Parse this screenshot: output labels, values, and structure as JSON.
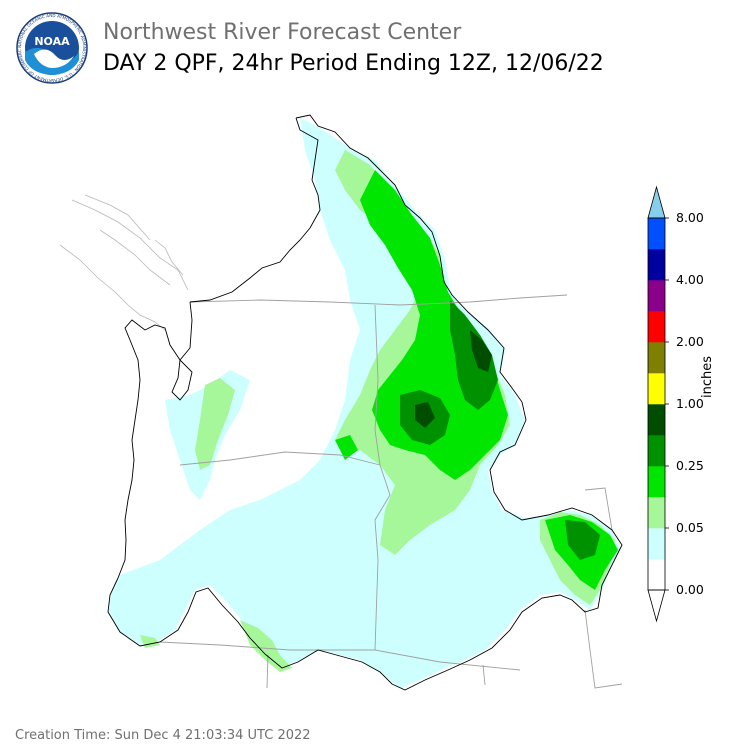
{
  "header": {
    "agency": "Northwest River Forecast Center",
    "product": "DAY 2 QPF, 24hr Period Ending 12Z, 12/06/22",
    "logo_text": "NOAA",
    "logo_ring_text": "NATIONAL OCEANIC AND ATMOSPHERIC ADMINISTRATION · U.S. DEPARTMENT OF COMMERCE"
  },
  "legend": {
    "unit": "inches",
    "ticks": [
      "8.00",
      "4.00",
      "2.00",
      "1.00",
      "0.25",
      "0.05",
      "0.00"
    ],
    "colors": [
      "#ffffff",
      "#ccfffe",
      "#a6f79a",
      "#00e600",
      "#009100",
      "#004d00",
      "#ffff00",
      "#808000",
      "#ff0000",
      "#8b008b",
      "#0000a0",
      "#0050ff"
    ],
    "extend_max_color": "#87ceeb",
    "extend_min_color": "#ffffff"
  },
  "footer": {
    "creation_time": "Creation Time: Sun Dec 4 21:03:34 UTC 2022"
  }
}
